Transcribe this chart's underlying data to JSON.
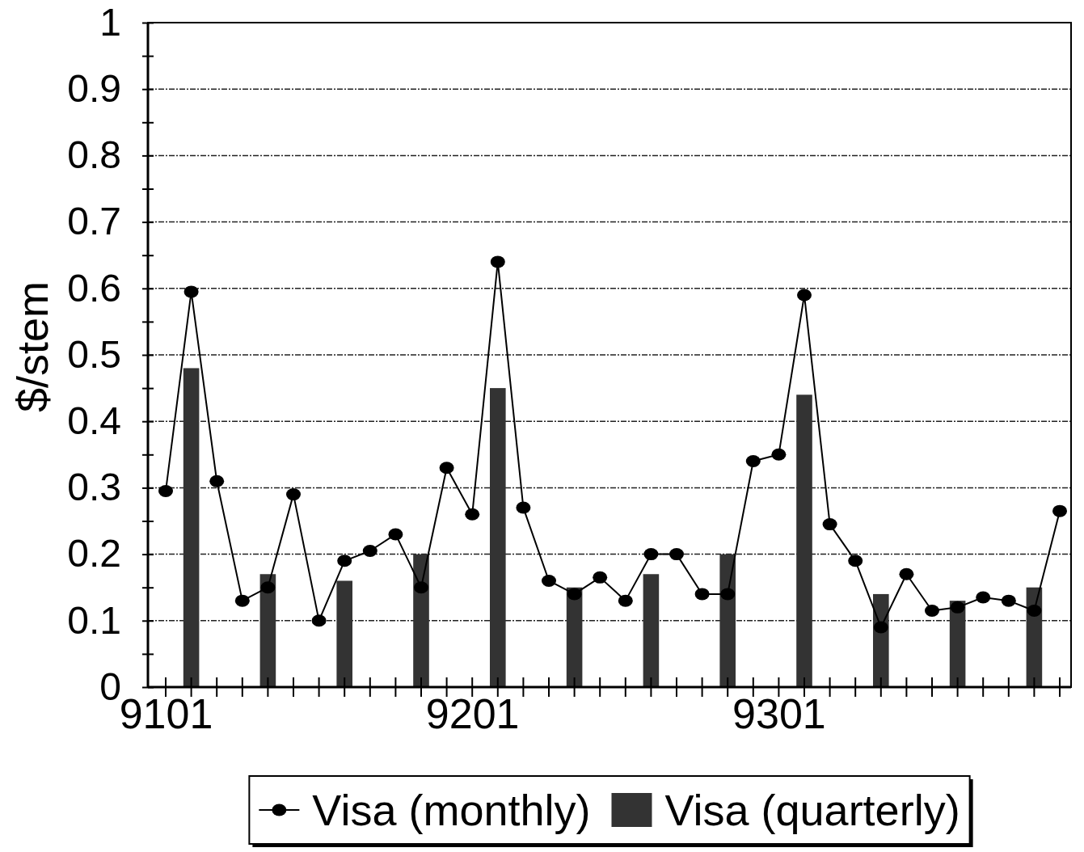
{
  "chart_data": {
    "type": "bar",
    "ylabel": "$/stem",
    "categories": [
      "9101",
      null,
      null,
      null,
      null,
      null,
      null,
      null,
      null,
      null,
      null,
      null,
      "9201",
      null,
      null,
      null,
      null,
      null,
      null,
      null,
      null,
      null,
      null,
      null,
      "9301",
      null,
      null,
      null,
      null,
      null,
      null,
      null,
      null,
      null,
      null,
      null
    ],
    "series": [
      {
        "name": "Visa (monthly)",
        "type": "line",
        "color": "#000000",
        "values": [
          0.295,
          0.595,
          0.31,
          0.13,
          0.15,
          0.29,
          0.1,
          0.19,
          0.205,
          0.23,
          0.15,
          0.33,
          0.26,
          0.64,
          0.27,
          0.16,
          0.14,
          0.165,
          0.13,
          0.2,
          0.2,
          0.14,
          0.14,
          0.34,
          0.35,
          0.59,
          0.245,
          0.19,
          0.09,
          0.17,
          0.115,
          0.12,
          0.135,
          0.13,
          0.115,
          0.265
        ]
      },
      {
        "name": "Visa (quarterly)",
        "color": "#333333",
        "values": [
          null,
          0.48,
          null,
          null,
          0.17,
          null,
          null,
          0.16,
          null,
          null,
          0.2,
          null,
          null,
          0.45,
          null,
          null,
          0.15,
          null,
          null,
          0.17,
          null,
          null,
          0.2,
          null,
          null,
          0.44,
          null,
          null,
          0.14,
          null,
          null,
          0.13,
          null,
          null,
          0.15,
          null
        ]
      }
    ],
    "ylim": [
      0,
      1
    ],
    "yticks": [
      0,
      {
        "value": 0.05,
        "label": null
      },
      0.1,
      {
        "value": 0.15,
        "label": null
      },
      0.2,
      {
        "value": 0.25,
        "label": null
      },
      0.3,
      {
        "value": 0.35,
        "label": null
      },
      0.4,
      {
        "value": 0.45,
        "label": null
      },
      0.5,
      {
        "value": 0.55,
        "label": null
      },
      0.6,
      {
        "value": 0.65,
        "label": null
      },
      0.7,
      {
        "value": 0.75,
        "label": null
      },
      0.8,
      {
        "value": 0.85,
        "label": null
      },
      0.9,
      {
        "value": 0.95,
        "label": null
      },
      1
    ],
    "grid": "y",
    "legend": "bottom",
    "marker": "circle"
  }
}
